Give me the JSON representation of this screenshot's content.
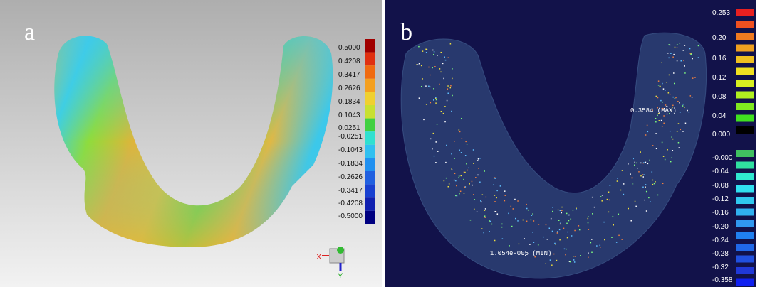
{
  "panels": [
    {
      "label": "a",
      "scale": [
        "0.5000",
        "0.4208",
        "0.3417",
        "0.2626",
        "0.1834",
        "0.1043",
        "0.0251",
        "-0.0251",
        "-0.1043",
        "-0.1834",
        "-0.2626",
        "-0.3417",
        "-0.4208",
        "-0.5000"
      ],
      "gizmo": [
        "X",
        "Y"
      ]
    },
    {
      "label": "b",
      "scale": [
        "0.253",
        "0.20",
        "0.16",
        "0.12",
        "0.08",
        "0.04",
        "0.000",
        "-0.000",
        "-0.04",
        "-0.08",
        "-0.12",
        "-0.16",
        "-0.20",
        "-0.24",
        "-0.28",
        "-0.32",
        "-0.358"
      ],
      "max_label": "0.3584 (MAX)",
      "min_label": "1.054e-005 (MIN)"
    }
  ]
}
